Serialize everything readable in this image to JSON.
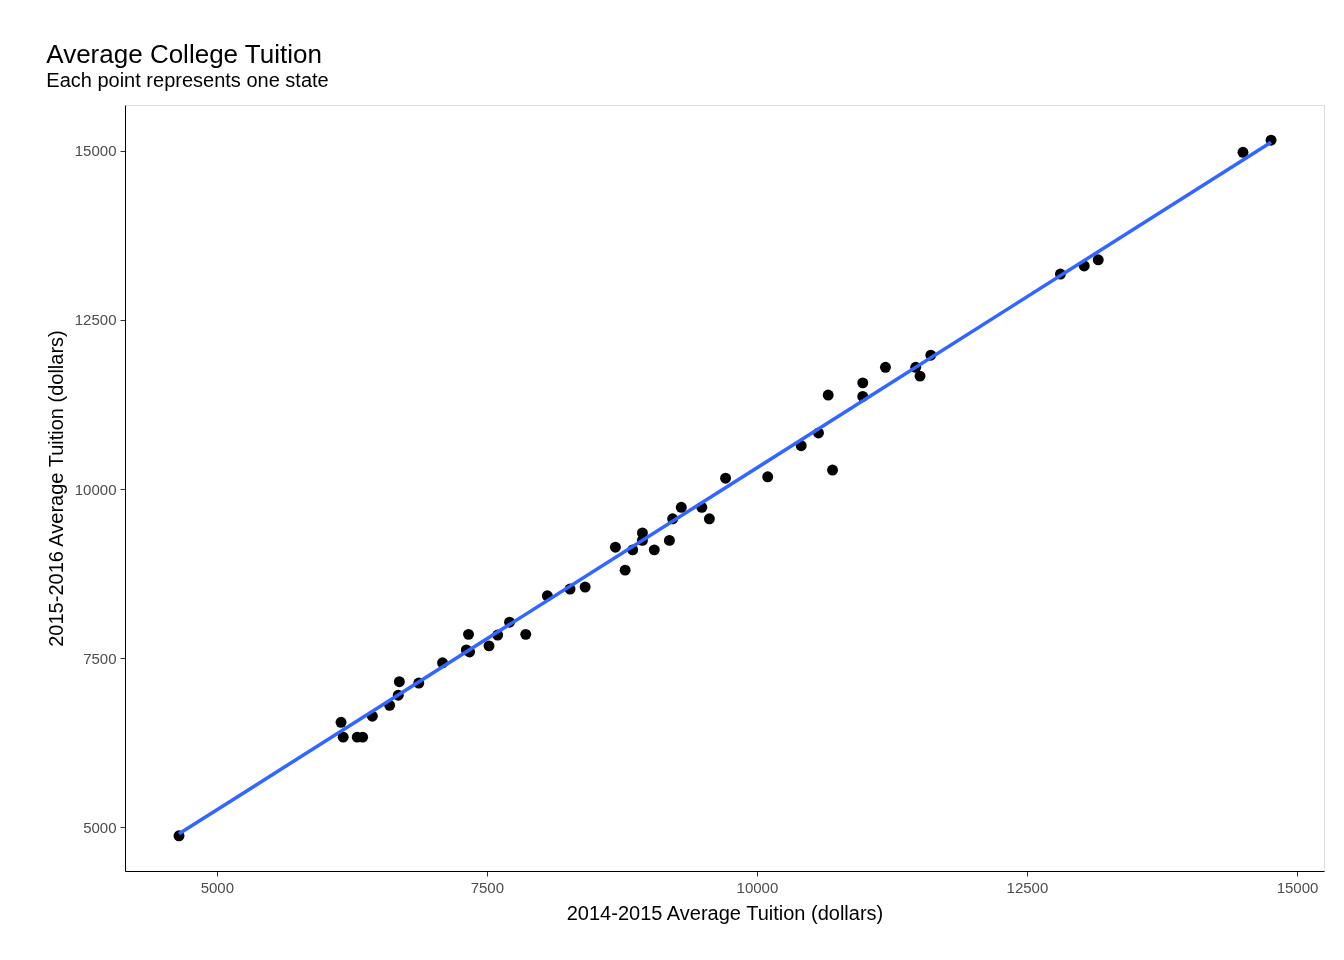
{
  "chart_data": {
    "type": "scatter",
    "title": "Average College Tuition",
    "subtitle": "Each point represents one state",
    "xlabel": "2014-2015 Average Tuition (dollars)",
    "ylabel": "2015-2016 Average Tuition (dollars)",
    "xlim": [
      4150,
      15250
    ],
    "ylim": [
      4350,
      15680
    ],
    "xticks": [
      5000,
      7500,
      10000,
      12500,
      15000
    ],
    "yticks": [
      5000,
      7500,
      10000,
      12500,
      15000
    ],
    "grid": false,
    "marker": "circle",
    "series": [
      {
        "color": "#000000",
        "x": [
          4650,
          6150,
          6170,
          6300,
          6350,
          6440,
          6600,
          6690,
          6680,
          6870,
          7090,
          7310,
          7330,
          7340,
          7520,
          7600,
          7710,
          7860,
          8060,
          8270,
          8410,
          8690,
          8780,
          8850,
          8940,
          8940,
          9050,
          9190,
          9220,
          9300,
          9490,
          9560,
          9710,
          10100,
          10410,
          10570,
          10660,
          10700,
          10980,
          10980,
          11190,
          11470,
          11510,
          11610,
          12810,
          13030,
          13160,
          14500,
          14760
        ],
        "values": [
          4870,
          6550,
          6330,
          6330,
          6330,
          6640,
          6800,
          7150,
          6950,
          7130,
          7430,
          7620,
          7850,
          7590,
          7680,
          7840,
          8030,
          7850,
          8420,
          8520,
          8550,
          9140,
          8800,
          9100,
          9240,
          9350,
          9100,
          9240,
          9560,
          9730,
          9730,
          9560,
          10160,
          10180,
          10640,
          10830,
          11390,
          10280,
          11570,
          11370,
          11800,
          11800,
          11670,
          11980,
          13180,
          13300,
          13390,
          14980,
          15160
        ]
      },
      {
        "type": "line",
        "marker": "none",
        "line_style": "solid",
        "color": "#3366ff",
        "x": [
          4650,
          14760
        ],
        "values": [
          4900,
          15130
        ]
      }
    ]
  }
}
